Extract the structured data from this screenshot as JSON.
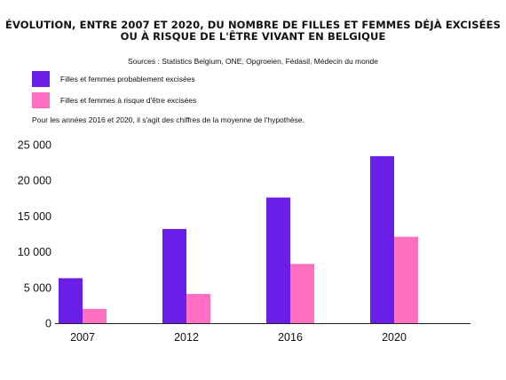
{
  "title_lines": [
    "ÉVOLUTION, ENTRE 2007 ET 2020, DU NOMBRE DE FILLES ET FEMMES DÉJÀ EXCISÉES",
    "OU À RISQUE DE L'ÊTRE VIVANT EN BELGIQUE"
  ],
  "sources": "Sources : Statistics Belgium, ONE, Opgroeien, Fédasil, Médecin du monde",
  "note": "Pour les années 2016 et 2020, il s'agit des chiffres de la moyenne de l'hypothèse.",
  "colors": {
    "series1": "#6a1ee8",
    "series2": "#ff6fc2",
    "axis": "#222222"
  },
  "chart_data": {
    "type": "bar",
    "categories": [
      "2007",
      "2012",
      "2016",
      "2020"
    ],
    "series": [
      {
        "name": "Filles et femmes probablement excisées",
        "values": [
          6300,
          13200,
          17600,
          23400
        ]
      },
      {
        "name": "Filles et femmes à risque d'être excisées",
        "values": [
          2000,
          4100,
          8300,
          12100
        ]
      }
    ],
    "y_ticks": [
      "0",
      "5 000",
      "10 000",
      "15 000",
      "20 000",
      "25 000"
    ],
    "y_tick_values": [
      0,
      5000,
      10000,
      15000,
      20000,
      25000
    ],
    "ylim": [
      0,
      25000
    ],
    "grid": false,
    "legend_position": "top-left"
  }
}
